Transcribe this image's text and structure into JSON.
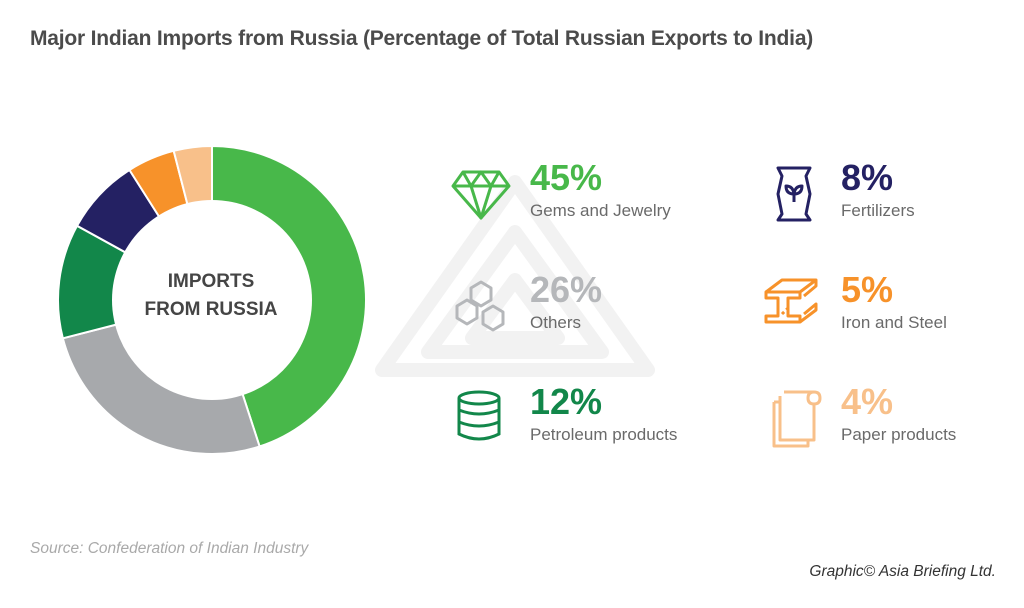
{
  "title": "Major Indian Imports from Russia (Percentage of Total Russian Exports to India)",
  "center_label": {
    "line1": "IMPORTS",
    "line2": "FROM RUSSIA"
  },
  "chart_data": {
    "type": "pie",
    "title": "Major Indian Imports from Russia (Percentage of Total Russian Exports to India)",
    "categories": [
      "Gems and Jewelry",
      "Others",
      "Petroleum products",
      "Fertilizers",
      "Iron and Steel",
      "Paper products"
    ],
    "values": [
      45,
      26,
      12,
      8,
      5,
      4
    ],
    "unit": "%",
    "colors": [
      "#48b84a",
      "#a7a9ac",
      "#12874a",
      "#242163",
      "#f7922a",
      "#f8c08a"
    ],
    "slice_order_clockwise_from_top": [
      "Gems and Jewelry",
      "Others",
      "Petroleum products",
      "Fertilizers",
      "Iron and Steel",
      "Paper products"
    ],
    "style": "donut"
  },
  "legend": [
    {
      "value": "45%",
      "label": "Gems and Jewelry",
      "color": "#48b84a",
      "icon": "gem-icon"
    },
    {
      "value": "26%",
      "label": "Others",
      "color": "#b5b7ba",
      "icon": "hexagons-icon"
    },
    {
      "value": "12%",
      "label": "Petroleum products",
      "color": "#12874a",
      "icon": "oil-barrel-icon"
    },
    {
      "value": "8%",
      "label": "Fertilizers",
      "color": "#242163",
      "icon": "fertilizer-bag-icon"
    },
    {
      "value": "5%",
      "label": "Iron and Steel",
      "color": "#f7922a",
      "icon": "steel-beam-icon"
    },
    {
      "value": "4%",
      "label": "Paper products",
      "color": "#f8c08a",
      "icon": "paper-roll-icon"
    }
  ],
  "source": "Source: Confederation of Indian Industry",
  "credit": "Graphic© Asia Briefing Ltd."
}
